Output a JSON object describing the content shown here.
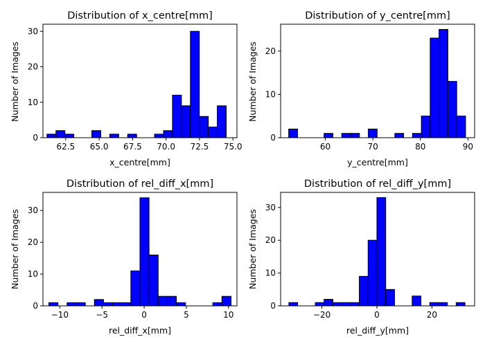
{
  "figure": {
    "colors": {
      "bar_fill": "#0000ff",
      "bar_edge": "#000000",
      "axis": "#000000",
      "background": "#ffffff"
    }
  },
  "chart_data": [
    {
      "type": "bar",
      "title": "Distribution of x_centre[mm]",
      "xlabel": "x_centre[mm]",
      "ylabel": "Number of Images",
      "xlim": [
        60.8,
        75.3
      ],
      "ylim": [
        0,
        32
      ],
      "xticks": [
        62.5,
        65.0,
        67.5,
        70.0,
        72.5,
        75.0
      ],
      "xtick_labels": [
        "62.5",
        "65.0",
        "67.5",
        "70.0",
        "72.5",
        "75.0"
      ],
      "yticks": [
        0,
        10,
        20,
        30
      ],
      "ytick_labels": [
        "0",
        "10",
        "20",
        "30"
      ],
      "bin_edges": [
        61.1,
        61.77,
        62.44,
        63.11,
        63.78,
        64.45,
        65.12,
        65.79,
        66.46,
        67.13,
        67.8,
        68.47,
        69.14,
        69.81,
        70.48,
        71.15,
        71.82,
        72.49,
        73.16,
        73.83,
        74.5
      ],
      "counts": [
        1,
        2,
        1,
        0,
        0,
        2,
        0,
        1,
        0,
        1,
        0,
        0,
        1,
        2,
        12,
        9,
        30,
        6,
        3,
        9
      ]
    },
    {
      "type": "bar",
      "title": "Distribution of y_centre[mm]",
      "xlabel": "y_centre[mm]",
      "ylabel": "Number of Images",
      "xlim": [
        50.6,
        91.4
      ],
      "ylim": [
        0,
        26.2
      ],
      "xticks": [
        60,
        70,
        80,
        90
      ],
      "xtick_labels": [
        "60",
        "70",
        "80",
        "90"
      ],
      "yticks": [
        0,
        10,
        20
      ],
      "ytick_labels": [
        "0",
        "10",
        "20"
      ],
      "bin_edges": [
        52.3,
        54.16,
        56.02,
        57.88,
        59.74,
        61.6,
        63.46,
        65.32,
        67.18,
        69.04,
        70.9,
        72.76,
        74.62,
        76.48,
        78.34,
        80.2,
        82.06,
        83.92,
        85.78,
        87.64,
        89.5
      ],
      "counts": [
        2,
        0,
        0,
        0,
        1,
        0,
        1,
        1,
        0,
        2,
        0,
        0,
        1,
        0,
        1,
        5,
        23,
        25,
        13,
        5
      ]
    },
    {
      "type": "bar",
      "title": "Distribution of rel_diff_x[mm]",
      "xlabel": "rel_diff_x[mm]",
      "ylabel": "Number of Images",
      "xlim": [
        -12.0,
        11.0
      ],
      "ylim": [
        0,
        35.7
      ],
      "xticks": [
        -10,
        -5,
        0,
        5,
        10
      ],
      "xtick_labels": [
        "−10",
        "−5",
        "0",
        "5",
        "10"
      ],
      "yticks": [
        0,
        10,
        20,
        30
      ],
      "ytick_labels": [
        "0",
        "10",
        "20",
        "30"
      ],
      "bin_edges": [
        -11.3,
        -10.22,
        -9.14,
        -8.06,
        -6.98,
        -5.9,
        -4.82,
        -3.74,
        -2.66,
        -1.58,
        -0.5,
        0.58,
        1.66,
        2.74,
        3.82,
        4.9,
        5.98,
        7.06,
        8.14,
        9.22,
        10.3
      ],
      "counts": [
        1,
        0,
        1,
        1,
        0,
        2,
        1,
        1,
        1,
        11,
        34,
        16,
        3,
        3,
        1,
        0,
        0,
        0,
        1,
        3
      ]
    },
    {
      "type": "bar",
      "title": "Distribution of rel_diff_y[mm]",
      "xlabel": "rel_diff_y[mm]",
      "ylabel": "Number of Images",
      "xlim": [
        -35.0,
        35.5
      ],
      "ylim": [
        0,
        34.6
      ],
      "xticks": [
        -20,
        0,
        20
      ],
      "xtick_labels": [
        "−20",
        "0",
        "20"
      ],
      "yticks": [
        0,
        10,
        20,
        30
      ],
      "ytick_labels": [
        "0",
        "10",
        "20",
        "30"
      ],
      "bin_edges": [
        -32.0,
        -28.8,
        -25.6,
        -22.4,
        -19.2,
        -16.0,
        -12.8,
        -9.6,
        -6.4,
        -3.2,
        0.0,
        3.2,
        6.4,
        9.6,
        12.8,
        16.0,
        19.2,
        22.4,
        25.6,
        28.8,
        32.0
      ],
      "counts": [
        1,
        0,
        0,
        1,
        2,
        1,
        1,
        1,
        9,
        20,
        33,
        5,
        0,
        0,
        3,
        0,
        1,
        1,
        0,
        1
      ]
    }
  ]
}
